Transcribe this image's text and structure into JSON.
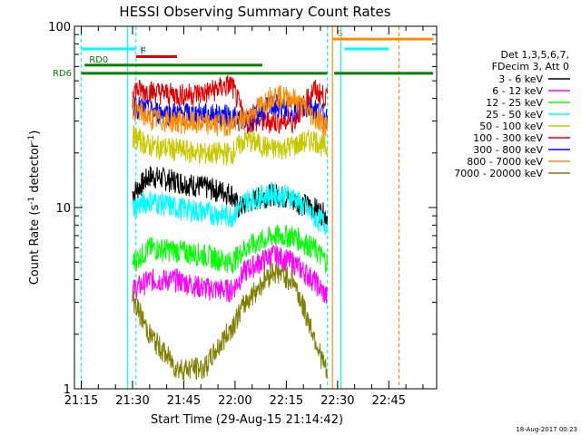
{
  "chart_data": {
    "type": "line",
    "title": "HESSI Observing Summary Count Rates",
    "xlabel": "Start Time (29-Aug-15 21:14:42)",
    "ylabel_main": "Count Rate (s",
    "ylabel_sup1": "-1",
    "ylabel_mid": " detector",
    "ylabel_sup2": "-1",
    "ylabel_end": ")",
    "y_scale": "log",
    "ylim": [
      1,
      100
    ],
    "xlim_minutes": [
      -2,
      104
    ],
    "x_ticks": [
      {
        "t": 0,
        "label": "21:15"
      },
      {
        "t": 15,
        "label": "21:30"
      },
      {
        "t": 30,
        "label": "21:45"
      },
      {
        "t": 45,
        "label": "22:00"
      },
      {
        "t": 60,
        "label": "22:15"
      },
      {
        "t": 75,
        "label": "22:30"
      },
      {
        "t": 90,
        "label": "22:45"
      }
    ],
    "y_ticks": [
      {
        "v": 1,
        "label": "1"
      },
      {
        "v": 10,
        "label": "10"
      },
      {
        "v": 100,
        "label": "100"
      }
    ],
    "legend_header": [
      "Det 1,3,5,6,7,",
      "FDecim 3, Att 0"
    ],
    "legend_placement": "right",
    "series": [
      {
        "name": "3 - 6 keV",
        "color": "#000000",
        "points": [
          [
            15,
            12
          ],
          [
            20,
            15
          ],
          [
            28,
            14
          ],
          [
            36,
            13
          ],
          [
            44,
            12
          ],
          [
            46,
            10
          ],
          [
            50,
            11
          ],
          [
            56,
            12
          ],
          [
            62,
            11
          ],
          [
            68,
            10
          ],
          [
            72,
            9
          ]
        ]
      },
      {
        "name": "6 - 12 keV",
        "color": "#ff00ff",
        "points": [
          [
            15,
            3.5
          ],
          [
            20,
            4
          ],
          [
            28,
            4
          ],
          [
            36,
            3.6
          ],
          [
            44,
            3.5
          ],
          [
            48,
            4.5
          ],
          [
            56,
            5.5
          ],
          [
            62,
            5
          ],
          [
            68,
            4
          ],
          [
            72,
            3.2
          ]
        ]
      },
      {
        "name": "12 - 25 keV",
        "color": "#00ff00",
        "points": [
          [
            15,
            5
          ],
          [
            20,
            6
          ],
          [
            28,
            5.8
          ],
          [
            36,
            5.5
          ],
          [
            44,
            5
          ],
          [
            48,
            6
          ],
          [
            56,
            7
          ],
          [
            62,
            7
          ],
          [
            68,
            6
          ],
          [
            72,
            5
          ]
        ]
      },
      {
        "name": "25 - 50 keV",
        "color": "#00ffff",
        "points": [
          [
            15,
            10
          ],
          [
            20,
            11
          ],
          [
            28,
            10
          ],
          [
            36,
            9.5
          ],
          [
            44,
            9
          ],
          [
            48,
            11
          ],
          [
            56,
            12
          ],
          [
            62,
            11.5
          ],
          [
            68,
            9
          ],
          [
            72,
            8
          ]
        ]
      },
      {
        "name": "50 - 100 keV",
        "color": "#c8c800",
        "points": [
          [
            15,
            25
          ],
          [
            20,
            22
          ],
          [
            28,
            21
          ],
          [
            36,
            20
          ],
          [
            44,
            20
          ],
          [
            48,
            24
          ],
          [
            56,
            21
          ],
          [
            62,
            22
          ],
          [
            68,
            24
          ],
          [
            72,
            21
          ]
        ]
      },
      {
        "name": "100 - 300 keV",
        "color": "#e00000",
        "points": [
          [
            15,
            45
          ],
          [
            20,
            44
          ],
          [
            28,
            42
          ],
          [
            36,
            43
          ],
          [
            44,
            48
          ],
          [
            48,
            30
          ],
          [
            56,
            30
          ],
          [
            62,
            30
          ],
          [
            68,
            45
          ],
          [
            72,
            40
          ]
        ]
      },
      {
        "name": "300 - 800 keV",
        "color": "#0000ff",
        "points": [
          [
            15,
            37
          ],
          [
            20,
            34
          ],
          [
            28,
            33
          ],
          [
            36,
            33
          ],
          [
            44,
            32
          ],
          [
            48,
            30
          ],
          [
            56,
            37
          ],
          [
            62,
            35
          ],
          [
            68,
            36
          ],
          [
            72,
            31
          ]
        ]
      },
      {
        "name": "800 - 7000 keV",
        "color": "#ff8c00",
        "points": [
          [
            15,
            36
          ],
          [
            20,
            31
          ],
          [
            28,
            30
          ],
          [
            36,
            29
          ],
          [
            44,
            29
          ],
          [
            48,
            31
          ],
          [
            56,
            42
          ],
          [
            62,
            40
          ],
          [
            68,
            32
          ],
          [
            72,
            28
          ]
        ]
      },
      {
        "name": "7000 - 20000 keV",
        "color": "#808000",
        "points": [
          [
            15,
            3.2
          ],
          [
            20,
            2
          ],
          [
            28,
            1.3
          ],
          [
            36,
            1.3
          ],
          [
            44,
            2.2
          ],
          [
            48,
            3
          ],
          [
            56,
            4.5
          ],
          [
            62,
            4
          ],
          [
            68,
            2
          ],
          [
            72,
            1.2
          ]
        ]
      }
    ],
    "flag_lines": [
      {
        "label": "RD6",
        "color": "#008000",
        "ranges": [
          [
            0,
            72
          ],
          [
            74,
            103
          ]
        ],
        "value": 55,
        "label_at": "left"
      },
      {
        "label": "RD0",
        "color": "#008000",
        "ranges": [
          [
            1,
            53
          ]
        ],
        "value": 61,
        "label_at": "start"
      },
      {
        "label": "S",
        "color": "#ff8c00",
        "ranges": [
          [
            73.5,
            103
          ]
        ],
        "value": 85,
        "label_at": "start"
      },
      {
        "label": "N",
        "color": "#00ffff",
        "ranges": [
          [
            0,
            16
          ],
          [
            77,
            90
          ]
        ],
        "value": 75,
        "label_at": "mid"
      },
      {
        "label": "F",
        "color": "#e00000",
        "ranges": [
          [
            16,
            28
          ]
        ],
        "value": 68,
        "label_at": "start"
      }
    ],
    "vertical_lines": [
      {
        "t": 0,
        "color": "#00ffff",
        "style": "dashed"
      },
      {
        "t": 13.5,
        "color": "#00ffff",
        "style": "solid"
      },
      {
        "t": 16,
        "color": "#00ffff",
        "style": "dashed"
      },
      {
        "t": 72,
        "color": "#00ffff",
        "style": "dashed"
      },
      {
        "t": 73.5,
        "color": "#ff8c00",
        "style": "solid"
      },
      {
        "t": 76,
        "color": "#00ffff",
        "style": "solid"
      },
      {
        "t": 93,
        "color": "#ff8c00",
        "style": "dashed"
      }
    ],
    "footer_date": "18-Aug-2017 00:23"
  }
}
